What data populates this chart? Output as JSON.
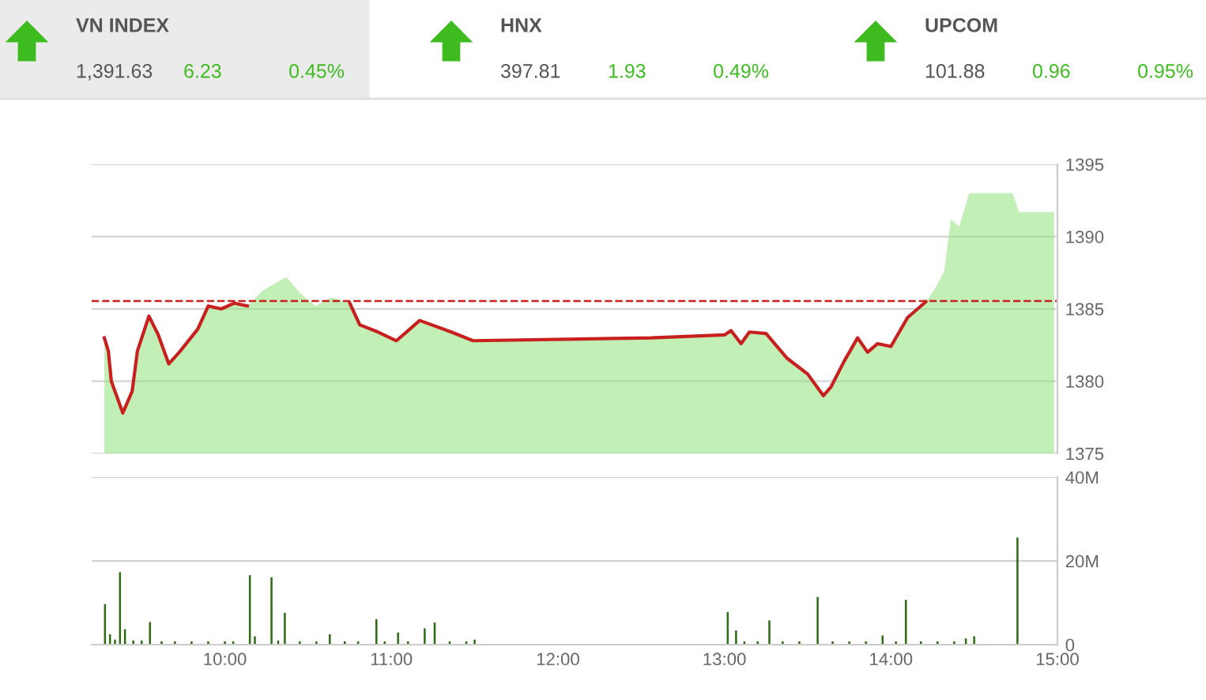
{
  "chart_data": [
    {
      "type": "other",
      "annotations": [
        "VN INDEX",
        "1,391.63",
        "6.23",
        "0.45%",
        "HNX",
        "397.81",
        "1.93",
        "0.49%",
        "UPCOM",
        "101.88",
        "0.96",
        "0.95%"
      ]
    },
    {
      "type": "area",
      "x": [
        9.276,
        9.3,
        9.318,
        9.387,
        9.443,
        9.475,
        9.544,
        9.6,
        9.663,
        9.726,
        9.837,
        9.9,
        9.978,
        10.057,
        10.135,
        10.23,
        10.37,
        10.45,
        10.544,
        10.64,
        10.75,
        10.81,
        10.92,
        11.03,
        11.17,
        11.36,
        11.49,
        12.56,
        13.0,
        13.04,
        13.1,
        13.15,
        13.25,
        13.375,
        13.5,
        13.594,
        13.64,
        13.72,
        13.8,
        13.86,
        13.92,
        14.0,
        14.1,
        14.16,
        14.21,
        14.27,
        14.32,
        14.36,
        14.41,
        14.47,
        14.73,
        14.77,
        14.98
      ],
      "series": [
        {
          "type": "area",
          "color": "#8ee27a",
          "values": [
            1383.0,
            1382.1,
            1380.0,
            1377.8,
            1379.3,
            1382.1,
            1384.5,
            1383.2,
            1381.2,
            1382.0,
            1383.6,
            1385.2,
            1385.0,
            1385.4,
            1385.2,
            1386.3,
            1387.2,
            1386.1,
            1385.2,
            1385.8,
            1385.4,
            1383.9,
            1383.4,
            1382.8,
            1384.2,
            1383.4,
            1382.8,
            1383.0,
            1383.2,
            1383.5,
            1382.6,
            1383.4,
            1383.3,
            1381.6,
            1380.5,
            1379.0,
            1379.6,
            1381.4,
            1383.0,
            1382.0,
            1382.6,
            1382.4,
            1384.4,
            1385.0,
            1385.5,
            1386.5,
            1387.6,
            1391.2,
            1390.7,
            1393.0,
            1393.0,
            1391.7,
            1391.7
          ]
        },
        {
          "type": "line",
          "color": "#c8201e",
          "values": [
            1383.0,
            1382.1,
            1380.0,
            1377.8,
            1379.3,
            1382.1,
            1384.5,
            1383.2,
            1381.2,
            1382.0,
            1383.6,
            1385.2,
            1385.0,
            1385.4,
            1385.2,
            null,
            null,
            null,
            null,
            null,
            1385.4,
            1383.9,
            1383.4,
            1382.8,
            1384.2,
            1383.4,
            1382.8,
            1383.0,
            1383.2,
            1383.5,
            1382.6,
            1383.4,
            1383.3,
            1381.6,
            1380.5,
            1379.0,
            1379.6,
            1381.4,
            1383.0,
            1382.0,
            1382.6,
            1382.4,
            1384.4,
            1385.0,
            1385.5,
            null,
            null,
            null,
            null,
            null,
            null,
            null,
            null
          ]
        }
      ],
      "xlim": [
        9.2,
        15.0
      ],
      "ylim": [
        1375,
        1395
      ],
      "yticks": [
        1375,
        1380,
        1385,
        1390,
        1395
      ],
      "grid": "y",
      "tick_labels": "y",
      "ref_lines": [
        {
          "axis": "y",
          "value": 1385.55,
          "color": "#c8201e",
          "line_style": "dashed"
        }
      ]
    },
    {
      "type": "bar",
      "color": "#2e6b12",
      "x": [
        9.28,
        9.31,
        9.34,
        9.37,
        9.4,
        9.45,
        9.5,
        9.55,
        9.62,
        9.7,
        9.8,
        9.9,
        10.0,
        10.05,
        10.15,
        10.18,
        10.28,
        10.32,
        10.36,
        10.45,
        10.55,
        10.63,
        10.72,
        10.8,
        10.91,
        10.96,
        11.04,
        11.1,
        11.2,
        11.26,
        11.35,
        11.45,
        11.5,
        13.02,
        13.07,
        13.12,
        13.2,
        13.27,
        13.35,
        13.45,
        13.56,
        13.65,
        13.75,
        13.85,
        13.95,
        14.03,
        14.09,
        14.18,
        14.28,
        14.38,
        14.45,
        14.5,
        14.76
      ],
      "values": [
        9.7,
        2.5,
        1.2,
        17.3,
        3.7,
        1.0,
        1.0,
        5.4,
        0.8,
        0.8,
        0.8,
        0.8,
        0.8,
        0.8,
        16.6,
        2.0,
        16.1,
        1.0,
        7.6,
        0.8,
        0.8,
        2.5,
        0.8,
        0.8,
        6.1,
        0.8,
        2.9,
        0.8,
        3.9,
        5.3,
        0.8,
        0.8,
        1.2,
        7.8,
        3.4,
        0.8,
        0.8,
        5.8,
        0.8,
        0.8,
        11.4,
        0.8,
        0.8,
        0.8,
        2.2,
        0.8,
        10.7,
        0.8,
        0.8,
        0.8,
        1.5,
        2.0,
        25.6
      ],
      "xlim": [
        9.2,
        15.0
      ],
      "ylim": [
        0,
        40
      ],
      "xticks": [
        {
          "value": 10,
          "label": "10:00"
        },
        {
          "value": 11,
          "label": "11:00"
        },
        {
          "value": 12,
          "label": "12:00"
        },
        {
          "value": 13,
          "label": "13:00"
        },
        {
          "value": 14,
          "label": "14:00"
        },
        {
          "value": 15,
          "label": "15:00"
        }
      ],
      "yticks": [
        0,
        {
          "value": 20,
          "label": "20M"
        },
        {
          "value": 40,
          "label": "40M"
        }
      ],
      "grid": "y"
    }
  ]
}
